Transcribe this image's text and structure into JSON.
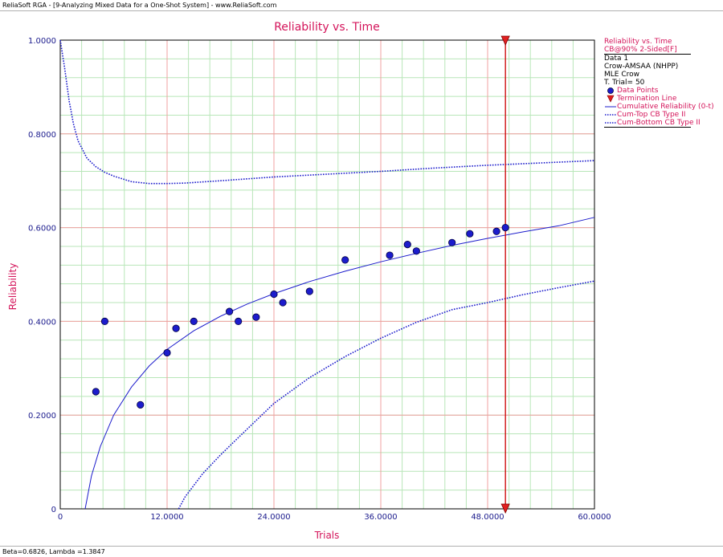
{
  "window": {
    "title": "ReliaSoft RGA - [9-Analyzing Mixed Data for a One-Shot System] - www.ReliaSoft.com",
    "status": "Beta=0.6826, Lambda =1.3847"
  },
  "legend": {
    "title": "Reliability vs. Time",
    "subtitle": "CB@90% 2-Sided[F]",
    "info": [
      "Data 1",
      "Crow-AMSAA (NHPP)",
      "MLE Crow",
      "T. Trial= 50"
    ],
    "entries": [
      {
        "label": "Data Points",
        "symbol": "dot"
      },
      {
        "label": "Termination Line",
        "symbol": "triangle"
      },
      {
        "label": "Cumulative Reliability (0-t)",
        "symbol": "solid"
      },
      {
        "label": "Cum-Top CB Type II",
        "symbol": "dotted"
      },
      {
        "label": "Cum-Bottom CB Type II",
        "symbol": "dotted"
      }
    ]
  },
  "colors": {
    "plot": "#1c1ccc",
    "accent": "#d4145a",
    "termination": "#cc0000",
    "major_grid": "#f0a0a0",
    "minor_grid": "#b8e6b8",
    "axis_text": "#1a1a8c"
  },
  "chart_data": {
    "type": "scatter",
    "title": "Reliability vs. Time",
    "xlabel": "Trials",
    "ylabel": "Reliability",
    "xlim": [
      0,
      60
    ],
    "ylim": [
      0,
      1
    ],
    "grid": true,
    "legend_position": "right",
    "x_ticks": [
      "0",
      "12.0000",
      "24.0000",
      "36.0000",
      "48.0000",
      "60.0000"
    ],
    "y_ticks": [
      "0",
      "0.2000",
      "0.4000",
      "0.6000",
      "0.8000",
      "1.0000"
    ],
    "termination_trial": 50,
    "data_points": [
      {
        "x": 4,
        "y": 0.25
      },
      {
        "x": 5,
        "y": 0.4
      },
      {
        "x": 9,
        "y": 0.222
      },
      {
        "x": 12,
        "y": 0.333
      },
      {
        "x": 13,
        "y": 0.385
      },
      {
        "x": 15,
        "y": 0.4
      },
      {
        "x": 19,
        "y": 0.421
      },
      {
        "x": 20,
        "y": 0.4
      },
      {
        "x": 22,
        "y": 0.409
      },
      {
        "x": 24,
        "y": 0.458
      },
      {
        "x": 25,
        "y": 0.44
      },
      {
        "x": 28,
        "y": 0.464
      },
      {
        "x": 32,
        "y": 0.531
      },
      {
        "x": 37,
        "y": 0.541
      },
      {
        "x": 39,
        "y": 0.564
      },
      {
        "x": 40,
        "y": 0.55
      },
      {
        "x": 44,
        "y": 0.568
      },
      {
        "x": 46,
        "y": 0.587
      },
      {
        "x": 49,
        "y": 0.592
      },
      {
        "x": 50,
        "y": 0.6
      }
    ],
    "series": [
      {
        "name": "Cumulative Reliability (0-t)",
        "style": "solid",
        "x": [
          2.8,
          3.5,
          4.5,
          6,
          8,
          10,
          12,
          15,
          18,
          21,
          24,
          28,
          32,
          36,
          40,
          44,
          48,
          52,
          56,
          60
        ],
        "y": [
          0.0,
          0.07,
          0.133,
          0.2,
          0.26,
          0.305,
          0.34,
          0.38,
          0.411,
          0.437,
          0.459,
          0.485,
          0.507,
          0.527,
          0.545,
          0.562,
          0.577,
          0.591,
          0.604,
          0.622
        ]
      },
      {
        "name": "Cum-Top CB Type II",
        "style": "dotted",
        "x": [
          0,
          0.5,
          1,
          1.5,
          2,
          3,
          4,
          5,
          6,
          8,
          10,
          12,
          14,
          18,
          24,
          30,
          36,
          42,
          48,
          54,
          60
        ],
        "y": [
          1.0,
          0.94,
          0.87,
          0.82,
          0.785,
          0.748,
          0.73,
          0.718,
          0.71,
          0.698,
          0.694,
          0.694,
          0.695,
          0.7,
          0.708,
          0.714,
          0.72,
          0.727,
          0.733,
          0.738,
          0.743
        ]
      },
      {
        "name": "Cum-Bottom CB Type II",
        "style": "dotted",
        "x": [
          13.3,
          14,
          16,
          18,
          20,
          24,
          28,
          32,
          36,
          40,
          44,
          48,
          52,
          56,
          60
        ],
        "y": [
          0.0,
          0.025,
          0.075,
          0.115,
          0.152,
          0.225,
          0.28,
          0.325,
          0.364,
          0.398,
          0.425,
          0.44,
          0.457,
          0.472,
          0.486
        ]
      }
    ]
  }
}
